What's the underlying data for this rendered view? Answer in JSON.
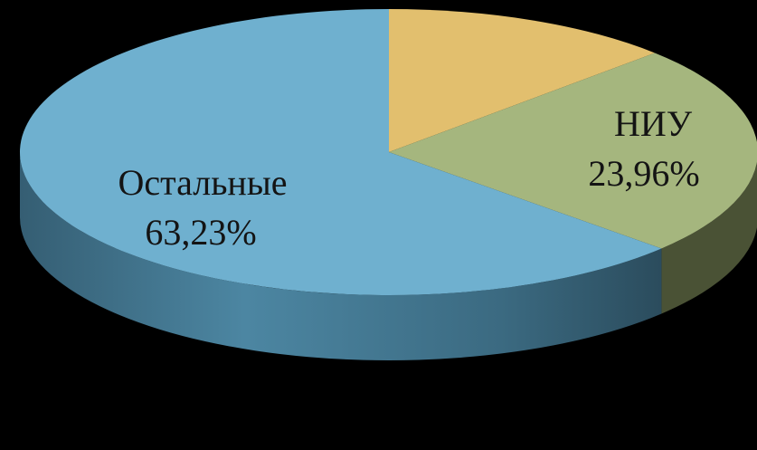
{
  "chart_data": {
    "type": "pie",
    "style": "3d",
    "slices": [
      {
        "label": "",
        "value_text": "",
        "value": 12.81,
        "color": "#e2bf6e",
        "side_color": "#8d7440"
      },
      {
        "label": "НИУ",
        "value_text": "23,96%",
        "value": 23.96,
        "color": "#a5b67e",
        "side_color": "#4a5235"
      },
      {
        "label": "Остальные",
        "value_text": "63,23%",
        "value": 63.23,
        "color": "#6fb0cf",
        "side_color": "#3f6f88"
      }
    ],
    "background": "#000000"
  }
}
